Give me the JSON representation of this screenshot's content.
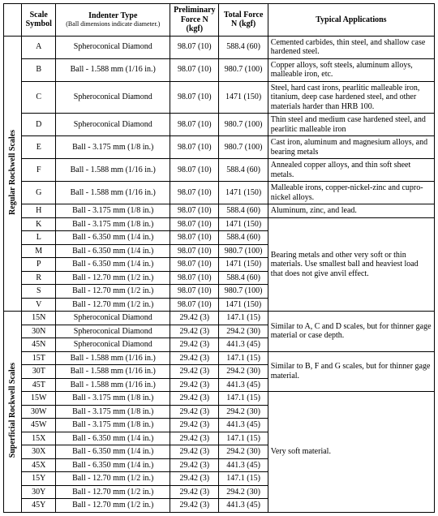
{
  "columns": {
    "group": "",
    "scale": "Scale Symbol",
    "indenter": "Indenter Type",
    "indenter_sub": "(Ball dimensions indicate diameter.)",
    "prelim": "Preliminary Force N (kgf)",
    "total": "Total Force N (kgf)",
    "apps": "Typical Applications"
  },
  "col_widths": [
    "22px",
    "42px",
    "140px",
    "60px",
    "60px",
    "204px"
  ],
  "groups": [
    {
      "label": "Regular Rockwell Scales",
      "rows": [
        {
          "scale": "A",
          "indenter": "Spheroconical Diamond",
          "prelim": "98.07 (10)",
          "total": "588.4 (60)",
          "app": "Cemented carbides, thin steel, and shallow case hardened steel.",
          "app_rowspan": 1
        },
        {
          "scale": "B",
          "indenter": "Ball - 1.588 mm (1/16 in.)",
          "prelim": "98.07 (10)",
          "total": "980.7 (100)",
          "app": "Copper alloys, soft steels, aluminum alloys, malleable iron, etc.",
          "app_rowspan": 1
        },
        {
          "scale": "C",
          "indenter": "Spheroconical Diamond",
          "prelim": "98.07 (10)",
          "total": "1471 (150)",
          "app": "Steel, hard cast irons, pearlitic malleable iron, titanium, deep case hardened steel, and other materials harder than HRB 100.",
          "app_rowspan": 1
        },
        {
          "scale": "D",
          "indenter": "Spheroconical Diamond",
          "prelim": "98.07 (10)",
          "total": "980.7 (100)",
          "app": "Thin steel and medium case hardened steel, and pearlitic malleable iron",
          "app_rowspan": 1
        },
        {
          "scale": "E",
          "indenter": "Ball - 3.175 mm (1/8 in.)",
          "prelim": "98.07 (10)",
          "total": "980.7 (100)",
          "app": "Cast iron, aluminum and magnesium alloys, and bearing metals",
          "app_rowspan": 1
        },
        {
          "scale": "F",
          "indenter": "Ball - 1.588 mm (1/16 in.)",
          "prelim": "98.07 (10)",
          "total": "588.4 (60)",
          "app": "Annealed copper alloys, and thin soft sheet metals.",
          "app_rowspan": 1
        },
        {
          "scale": "G",
          "indenter": "Ball - 1.588 mm (1/16 in.)",
          "prelim": "98.07 (10)",
          "total": "1471 (150)",
          "app": "Malleable irons, copper-nickel-zinc and cupro-nickel alloys.",
          "app_rowspan": 1
        },
        {
          "scale": "H",
          "indenter": "Ball - 3.175 mm (1/8 in.)",
          "prelim": "98.07 (10)",
          "total": "588.4 (60)",
          "app": "Aluminum, zinc, and lead.",
          "app_rowspan": 1
        },
        {
          "scale": "K",
          "indenter": "Ball - 3.175 mm (1/8 in.)",
          "prelim": "98.07 (10)",
          "total": "1471 (150)",
          "app": "Bearing metals and other very soft or thin materials. Use smallest ball and heaviest load that does not give anvil effect.",
          "app_rowspan": 7
        },
        {
          "scale": "L",
          "indenter": "Ball - 6.350 mm (1/4 in.)",
          "prelim": "98.07 (10)",
          "total": "588.4 (60)"
        },
        {
          "scale": "M",
          "indenter": "Ball - 6.350 mm (1/4 in.)",
          "prelim": "98.07 (10)",
          "total": "980.7 (100)"
        },
        {
          "scale": "P",
          "indenter": "Ball - 6.350 mm (1/4 in.)",
          "prelim": "98.07 (10)",
          "total": "1471 (150)"
        },
        {
          "scale": "R",
          "indenter": "Ball - 12.70 mm (1/2 in.)",
          "prelim": "98.07 (10)",
          "total": "588.4 (60)"
        },
        {
          "scale": "S",
          "indenter": "Ball - 12.70 mm (1/2 in.)",
          "prelim": "98.07 (10)",
          "total": "980.7 (100)"
        },
        {
          "scale": "V",
          "indenter": "Ball - 12.70 mm (1/2 in.)",
          "prelim": "98.07 (10)",
          "total": "1471 (150)"
        }
      ]
    },
    {
      "label": "Superficial Rockwell Scales",
      "rows": [
        {
          "scale": "15N",
          "indenter": "Spheroconical Diamond",
          "prelim": "29.42 (3)",
          "total": "147.1 (15)",
          "app": "Similar to A, C and D scales, but for thinner gage material or case depth.",
          "app_rowspan": 3
        },
        {
          "scale": "30N",
          "indenter": "Spheroconical Diamond",
          "prelim": "29.42 (3)",
          "total": "294.2 (30)"
        },
        {
          "scale": "45N",
          "indenter": "Spheroconical Diamond",
          "prelim": "29.42 (3)",
          "total": "441.3 (45)"
        },
        {
          "scale": "15T",
          "indenter": "Ball - 1.588 mm (1/16 in.)",
          "prelim": "29.42 (3)",
          "total": "147.1 (15)",
          "app": "Similar to B, F and G scales, but for thinner gage material.",
          "app_rowspan": 3
        },
        {
          "scale": "30T",
          "indenter": "Ball - 1.588 mm (1/16 in.)",
          "prelim": "29.42 (3)",
          "total": "294.2 (30)"
        },
        {
          "scale": "45T",
          "indenter": "Ball - 1.588 mm (1/16 in.)",
          "prelim": "29.42 (3)",
          "total": "441.3 (45)"
        },
        {
          "scale": "15W",
          "indenter": "Ball - 3.175 mm (1/8 in.)",
          "prelim": "29.42 (3)",
          "total": "147.1 (15)",
          "app": "Very soft material.",
          "app_rowspan": 9
        },
        {
          "scale": "30W",
          "indenter": "Ball - 3.175 mm (1/8 in.)",
          "prelim": "29.42 (3)",
          "total": "294.2 (30)"
        },
        {
          "scale": "45W",
          "indenter": "Ball - 3.175 mm (1/8 in.)",
          "prelim": "29.42 (3)",
          "total": "441.3 (45)"
        },
        {
          "scale": "15X",
          "indenter": "Ball - 6.350 mm (1/4 in.)",
          "prelim": "29.42 (3)",
          "total": "147.1 (15)"
        },
        {
          "scale": "30X",
          "indenter": "Ball - 6.350 mm (1/4 in.)",
          "prelim": "29.42 (3)",
          "total": "294.2 (30)"
        },
        {
          "scale": "45X",
          "indenter": "Ball - 6.350 mm (1/4 in.)",
          "prelim": "29.42 (3)",
          "total": "441.3 (45)"
        },
        {
          "scale": "15Y",
          "indenter": "Ball - 12.70 mm (1/2 in.)",
          "prelim": "29.42 (3)",
          "total": "147.1 (15)"
        },
        {
          "scale": "30Y",
          "indenter": "Ball - 12.70 mm (1/2 in.)",
          "prelim": "29.42 (3)",
          "total": "294.2 (30)"
        },
        {
          "scale": "45Y",
          "indenter": "Ball - 12.70 mm (1/2 in.)",
          "prelim": "29.42 (3)",
          "total": "441.3 (45)"
        }
      ]
    }
  ]
}
